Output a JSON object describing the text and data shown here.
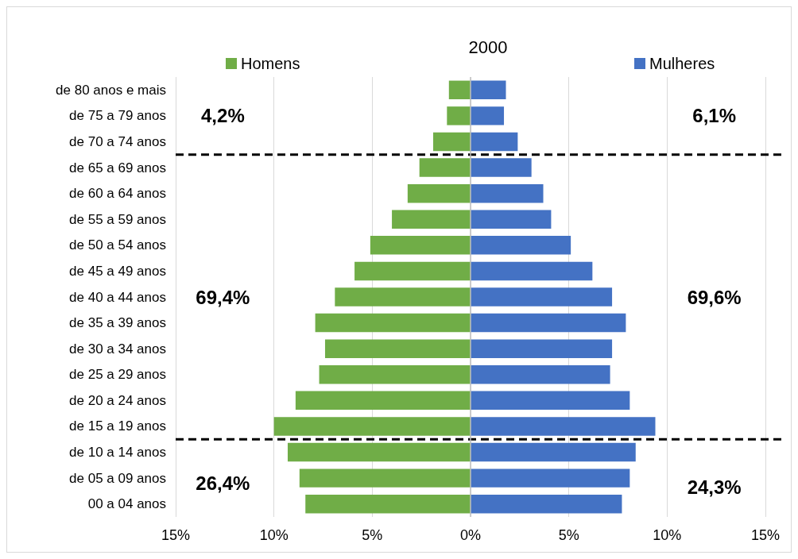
{
  "chart_data": {
    "type": "bar",
    "orientation": "horizontal",
    "title": "2000",
    "categories": [
      "de 80 anos e mais",
      "de 75 a 79 anos",
      "de 70 a 74 anos",
      "de 65 a 69 anos",
      "de 60 a 64 anos",
      "de 55 a 59 anos",
      "de 50 a 54 anos",
      "de 45 a 49 anos",
      "de 40 a 44 anos",
      "de 35 a 39 anos",
      "de 30 a 34 anos",
      "de 25 a 29 anos",
      "de 20 a 24 anos",
      "de 15 a 19 anos",
      "de 10 a 14 anos",
      "de 05 a 09 anos",
      "00 a 04 anos"
    ],
    "series": [
      {
        "name": "Homens",
        "color": "#70ad47",
        "values": [
          -1.1,
          -1.2,
          -1.9,
          -2.6,
          -3.2,
          -4.0,
          -5.1,
          -5.9,
          -6.9,
          -7.9,
          -7.4,
          -7.7,
          -8.9,
          -10.0,
          -9.3,
          -8.7,
          -8.4
        ]
      },
      {
        "name": "Mulheres",
        "color": "#4472c4",
        "values": [
          1.8,
          1.7,
          2.4,
          3.1,
          3.7,
          4.1,
          5.1,
          6.2,
          7.2,
          7.9,
          7.2,
          7.1,
          8.1,
          9.4,
          8.4,
          8.1,
          7.7
        ]
      }
    ],
    "xlim": [
      -15,
      15
    ],
    "xticks": [
      {
        "value": -15,
        "label": "15%"
      },
      {
        "value": -10,
        "label": "10%"
      },
      {
        "value": -5,
        "label": "5%"
      },
      {
        "value": 0,
        "label": "0%"
      },
      {
        "value": 5,
        "label": "5%"
      },
      {
        "value": 10,
        "label": "10%"
      },
      {
        "value": 15,
        "label": "15%"
      }
    ],
    "grid": "x",
    "legend": "top",
    "stacked": true,
    "ref_lines": [
      {
        "axis": "y",
        "value": "de 70 a 74 anos",
        "line_style": "dashed",
        "color": "#000000"
      },
      {
        "axis": "y",
        "value": "de 15 a 19 anos",
        "line_style": "dashed",
        "color": "#000000"
      }
    ],
    "annotations": [
      "4,2%",
      "6,1%",
      "69,4%",
      "69,6%",
      "26,4%",
      "24,3%"
    ]
  }
}
